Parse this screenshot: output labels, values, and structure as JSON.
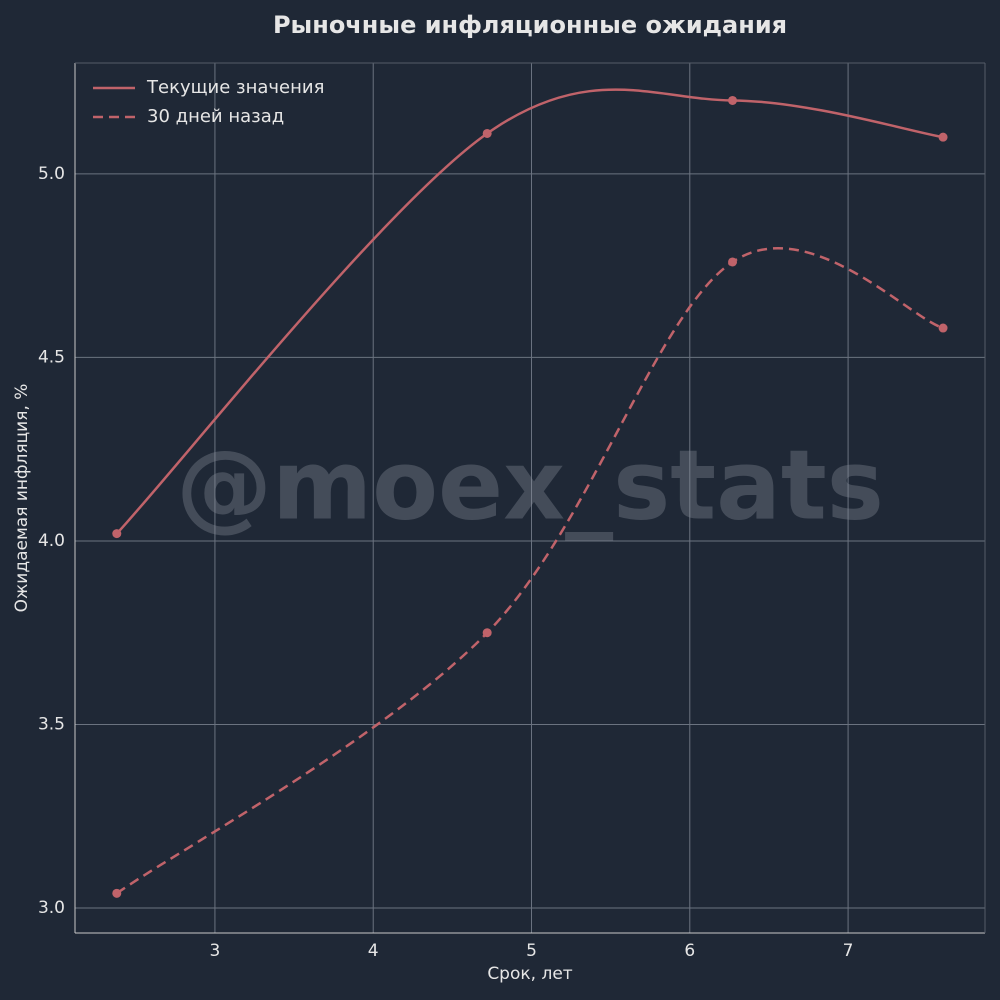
{
  "chart_data": {
    "type": "line",
    "title": "Рыночные инфляционные ожидания",
    "xlabel": "Срок, лет",
    "ylabel": "Ожидаемая инфляция, %",
    "watermark": "@moex_stats",
    "x": [
      2.38,
      4.72,
      6.27,
      7.6
    ],
    "series": [
      {
        "name": "Текущие значения",
        "color": "#c0636a",
        "linestyle": "-",
        "values": [
          4.02,
          5.11,
          5.2,
          5.1
        ]
      },
      {
        "name": "30 дней назад",
        "color": "#c0636a",
        "linestyle": "--",
        "values": [
          3.04,
          3.75,
          4.76,
          4.58
        ]
      }
    ],
    "xlim": [
      2.116,
      7.865
    ],
    "ylim": [
      2.932,
      5.302
    ],
    "xticks": [
      3,
      4,
      5,
      6,
      7
    ],
    "yticks": [
      {
        "value": 3,
        "label": "3.0"
      },
      {
        "value": 3.5,
        "label": "3.5"
      },
      {
        "value": 4,
        "label": "4.0"
      },
      {
        "value": 4.5,
        "label": "4.5"
      },
      {
        "value": 5,
        "label": "5.0"
      }
    ],
    "grid": true,
    "legend": "upper left"
  }
}
